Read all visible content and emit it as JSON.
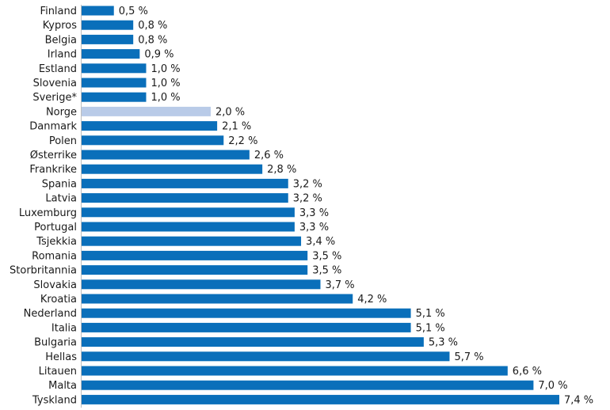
{
  "chart_data": {
    "type": "bar",
    "orientation": "horizontal",
    "title": "",
    "xlabel": "",
    "ylabel": "",
    "xlim": [
      0,
      7.4
    ],
    "grid": false,
    "legend": "none",
    "colors": {
      "bar": "#0a6fba",
      "highlight": "#b9cbe8"
    },
    "highlight_category": "Norge",
    "categories": [
      "Finland",
      "Kypros",
      "Belgia",
      "Irland",
      "Estland",
      "Slovenia",
      "Sverige*",
      "Norge",
      "Danmark",
      "Polen",
      "Østerrike",
      "Frankrike",
      "Spania",
      "Latvia",
      "Luxemburg",
      "Portugal",
      "Tsjekkia",
      "Romania",
      "Storbritannia",
      "Slovakia",
      "Kroatia",
      "Nederland",
      "Italia",
      "Bulgaria",
      "Hellas",
      "Litauen",
      "Malta",
      "Tyskland"
    ],
    "values": [
      0.5,
      0.8,
      0.8,
      0.9,
      1.0,
      1.0,
      1.0,
      2.0,
      2.1,
      2.2,
      2.6,
      2.8,
      3.2,
      3.2,
      3.3,
      3.3,
      3.4,
      3.5,
      3.5,
      3.7,
      4.2,
      5.1,
      5.1,
      5.3,
      5.7,
      6.6,
      7.0,
      7.4
    ],
    "value_labels": [
      "0,5 %",
      "0,8 %",
      "0,8 %",
      "0,9 %",
      "1,0 %",
      "1,0 %",
      "1,0 %",
      "2,0 %",
      "2,1 %",
      "2,2 %",
      "2,6 %",
      "2,8 %",
      "3,2 %",
      "3,2 %",
      "3,3 %",
      "3,3 %",
      "3,4 %",
      "3,5 %",
      "3,5 %",
      "3,7 %",
      "4,2 %",
      "5,1 %",
      "5,1 %",
      "5,3 %",
      "5,7 %",
      "6,6 %",
      "7,0 %",
      "7,4 %"
    ]
  }
}
